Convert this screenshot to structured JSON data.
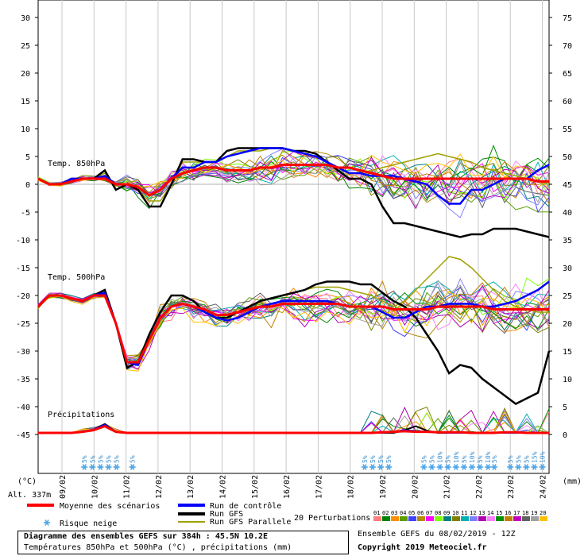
{
  "chart_data": {
    "type": "line",
    "title": "Diagramme des ensembles GEFS sur 384h : 45.5N 10.2E",
    "subtitle": "Températures 850hPa et 500hPa (°C) , précipitations (mm)",
    "left_unit": "(°C)",
    "right_unit": "(mm)",
    "altitude": "Alt. 337m",
    "left_axis": {
      "min": -45,
      "max": 30,
      "ticks": [
        "30",
        "25",
        "20",
        "15",
        "10",
        "5",
        "0",
        "-5",
        "-10",
        "-15",
        "-20",
        "-25",
        "-30",
        "-35",
        "-40",
        "-45"
      ]
    },
    "right_axis": {
      "ticks": [
        "75",
        "70",
        "65",
        "60",
        "55",
        "50",
        "45",
        "40",
        "35",
        "30",
        "25",
        "20",
        "15",
        "10",
        "5",
        "0"
      ]
    },
    "dates": [
      "09/02",
      "10/02",
      "11/02",
      "12/02",
      "13/02",
      "14/02",
      "15/02",
      "16/02",
      "17/02",
      "18/02",
      "19/02",
      "20/02",
      "21/02",
      "22/02",
      "23/02",
      "24/02"
    ],
    "panels": [
      {
        "name": "Temp. 850hPa",
        "mean": [
          1,
          0,
          0,
          0.5,
          1,
          1,
          1,
          0,
          0,
          -0.5,
          -2,
          -1,
          1,
          2,
          2.5,
          3,
          3,
          2.5,
          2.5,
          2.5,
          3,
          3,
          3.5,
          3.5,
          3.5,
          3.5,
          3.5,
          3,
          3,
          2.5,
          2,
          1.5,
          1,
          1,
          1,
          1,
          1,
          1,
          1,
          1,
          1,
          1,
          1,
          1,
          1,
          0.5,
          0.5
        ],
        "control": [
          1,
          0,
          0,
          1,
          1,
          1,
          1.5,
          0,
          0,
          -0.5,
          -2,
          -1,
          1,
          3,
          3,
          4,
          4,
          5,
          5.5,
          6,
          6.5,
          6.5,
          6.5,
          6,
          5.5,
          5,
          4,
          3,
          2,
          2,
          1.5,
          1.5,
          1.5,
          1,
          0.5,
          0,
          -2,
          -3.5,
          -3.5,
          -1,
          -1,
          0,
          1,
          1,
          1,
          2.5,
          3.5
        ],
        "gfs": [
          1,
          0,
          0,
          1,
          1,
          1,
          2.5,
          -1,
          0,
          -1,
          -4,
          -4,
          0,
          4.5,
          4.5,
          4,
          4,
          6,
          6.5,
          6.5,
          6.5,
          6.5,
          6.5,
          6,
          6,
          5.5,
          4,
          2.5,
          1,
          1,
          0,
          -4,
          -7,
          -7,
          -7.5,
          -8,
          -8.5,
          -9,
          -9.5,
          -9,
          -9,
          -8,
          -8,
          -8,
          -8.5,
          -9,
          -9.5
        ],
        "parallel": [
          1,
          0,
          0,
          1,
          1,
          1,
          2,
          -1,
          0,
          -1,
          -3,
          -3,
          0,
          4,
          4,
          4,
          4,
          5,
          6,
          6,
          6,
          6.5,
          6.5,
          6,
          6,
          5.5,
          4,
          3,
          2,
          2,
          2.5,
          3,
          3.5,
          4,
          4.5,
          5,
          5.5,
          5,
          4.5,
          4,
          3,
          2.5,
          2,
          1.5,
          1,
          0.5,
          0
        ]
      },
      {
        "name": "Temp. 500hPa",
        "mean": [
          -22,
          -20,
          -20,
          -20.5,
          -21,
          -20,
          -20,
          -25,
          -32,
          -32,
          -28,
          -24,
          -22,
          -21.5,
          -22,
          -22.5,
          -23.5,
          -23.5,
          -23,
          -22.5,
          -22,
          -22,
          -21.5,
          -21.5,
          -21.5,
          -21.5,
          -21.5,
          -21.5,
          -22,
          -22,
          -22,
          -22,
          -22.5,
          -22.5,
          -22.5,
          -22.5,
          -22,
          -22,
          -22,
          -22,
          -22,
          -22.5,
          -22.5,
          -22.5,
          -22.5,
          -22.5,
          -22.5
        ],
        "control": [
          -22,
          -20,
          -20,
          -20.5,
          -21,
          -20,
          -19.5,
          -25,
          -32,
          -32.5,
          -28,
          -24,
          -22,
          -21.5,
          -22,
          -23,
          -24,
          -24.5,
          -24,
          -23,
          -22,
          -21.5,
          -21,
          -21,
          -21,
          -21,
          -21,
          -21.5,
          -22,
          -22,
          -22,
          -23,
          -24,
          -24,
          -23,
          -22,
          -22,
          -21.5,
          -21.5,
          -21.5,
          -22,
          -22,
          -21.5,
          -21,
          -20,
          -19,
          -17.5
        ],
        "gfs": [
          -22,
          -20,
          -20,
          -20.5,
          -21,
          -20,
          -19,
          -25,
          -33,
          -32,
          -27,
          -23,
          -20,
          -20,
          -21,
          -23,
          -24,
          -24,
          -23,
          -22,
          -21,
          -20.5,
          -20,
          -19.5,
          -19,
          -18,
          -17.5,
          -17.5,
          -17.5,
          -18,
          -18,
          -19.5,
          -21,
          -22,
          -24,
          -27,
          -30,
          -34,
          -32.5,
          -33,
          -35,
          -36.5,
          -38,
          -39.5,
          -38.5,
          -37.5,
          -30
        ],
        "parallel": [
          -22,
          -20,
          -20,
          -20.5,
          -21,
          -20,
          -19,
          -25,
          -33,
          -32,
          -27,
          -23,
          -20,
          -20,
          -21,
          -23,
          -24,
          -24,
          -23,
          -22,
          -21,
          -20.5,
          -20,
          -19.5,
          -19,
          -18.5,
          -18.5,
          -18.5,
          -19,
          -19.5,
          -20,
          -21,
          -22,
          -21,
          -19,
          -17,
          -15,
          -13,
          -13.5,
          -15,
          -17,
          -19,
          -21,
          -22,
          -22.5,
          -23,
          -23
        ]
      }
    ],
    "precipitation": {
      "mean": [
        0,
        0,
        0,
        0,
        0.2,
        0.5,
        1.2,
        0.2,
        0,
        0,
        0,
        0,
        0,
        0,
        0,
        0,
        0,
        0,
        0,
        0,
        0,
        0,
        0,
        0,
        0,
        0,
        0,
        0,
        0,
        0,
        0,
        0.1,
        0.2,
        0.3,
        0.2,
        0.2,
        0.1,
        0.1,
        0.1,
        0,
        0,
        0,
        0.1,
        0.1,
        0,
        0,
        0
      ],
      "control": [
        0,
        0,
        0,
        0,
        0.2,
        0.6,
        1.5,
        0.2,
        0,
        0,
        0,
        0,
        0,
        0,
        0,
        0,
        0,
        0,
        0,
        0,
        0,
        0,
        0,
        0,
        0,
        0,
        0,
        0,
        0,
        0,
        0,
        0,
        0.2,
        0.5,
        0.3,
        0.2,
        0.1,
        0,
        0,
        0,
        0,
        0,
        0,
        0,
        0,
        0,
        0
      ],
      "gfs": [
        0,
        0,
        0,
        0,
        0.2,
        0.6,
        1.6,
        0.2,
        0,
        0,
        0,
        0,
        0,
        0,
        0,
        0,
        0,
        0,
        0,
        0,
        0,
        0,
        0,
        0,
        0,
        0,
        0,
        0,
        0,
        0,
        0,
        0,
        0,
        0.5,
        1.2,
        0.4,
        0,
        0,
        0,
        0,
        0,
        0,
        0,
        0,
        0,
        0,
        0
      ]
    },
    "snow_risk": [
      {
        "date_index": 0.7,
        "labels": [
          "5%",
          "5%",
          "5%",
          "5%",
          "5%"
        ]
      },
      {
        "date_index": 2.2,
        "labels": [
          "5%"
        ]
      },
      {
        "date_index": 9.45,
        "labels": [
          "5%",
          "5%",
          "5%",
          "5%"
        ]
      },
      {
        "date_index": 11.3,
        "labels": [
          "5%",
          "5%",
          "10%",
          "5%",
          "10%",
          "5%",
          "10%",
          "5%",
          "10%"
        ]
      },
      {
        "date_index": 13.5,
        "labels": [
          "5%"
        ]
      },
      {
        "date_index": 14.0,
        "labels": [
          "5%",
          "5%",
          "5%",
          "15%",
          "10%"
        ]
      }
    ]
  },
  "legend": {
    "mean_label": "Moyenne des scénarios",
    "control_label": "Run de contrôle",
    "gfs_label": "Run GFS",
    "parallel_label": "Run GFS Parallele",
    "snow_label": "Risque neige",
    "perturbations_label": "20 Perturbations",
    "perturbation_numbers": [
      "01",
      "02",
      "03",
      "04",
      "05",
      "06",
      "07",
      "08",
      "09",
      "10",
      "11",
      "12",
      "13",
      "14",
      "15",
      "16",
      "17",
      "18",
      "19",
      "20"
    ],
    "perturbation_colors": [
      "#ff8080",
      "#008000",
      "#ff8c00",
      "#5a9e00",
      "#4040ff",
      "#b58900",
      "#ff00ff",
      "#80ff00",
      "#008080",
      "#808000",
      "#00b0b0",
      "#8080ff",
      "#b000b0",
      "#ff80ff",
      "#009000",
      "#c08000",
      "#c000c0",
      "#606060",
      "#a0a0a0",
      "#ffc000"
    ]
  },
  "colors": {
    "mean": "#ff0000",
    "control": "#0000ff",
    "gfs": "#000000",
    "parallel": "#a0a000",
    "snow": "#4da6e8"
  },
  "footer": {
    "title": "Diagramme des ensembles GEFS sur 384h : 45.5N 10.2E",
    "subtitle": "Températures 850hPa et 500hPa (°C) , précipitations (mm)",
    "run_info": "Ensemble GEFS du 08/02/2019 - 12Z",
    "copyright": "Copyright 2019 Meteociel.fr"
  }
}
